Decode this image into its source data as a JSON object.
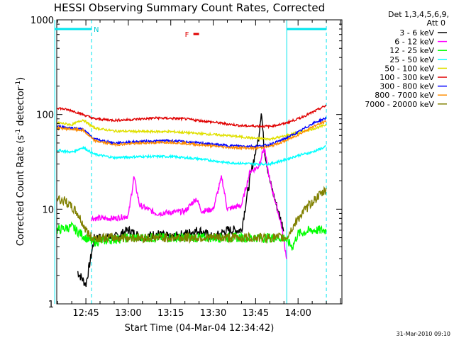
{
  "chart_data": {
    "type": "line",
    "title": "HESSI Observing Summary Count Rates, Corrected",
    "xlabel": "Start Time (04-Mar-04 12:34:42)",
    "ylabel_main": "Corrected Count Rate (s",
    "ylabel_sup1": "-1",
    "ylabel_mid": " detector",
    "ylabel_sup2": "-1",
    "ylabel_end": ")",
    "y_scale": "log",
    "ylim": [
      1,
      1000
    ],
    "y_ticks": [
      "1",
      "10",
      "100",
      "1000"
    ],
    "xlim": [
      "12:34",
      "14:15"
    ],
    "x_ticks": [
      "12:45",
      "13:00",
      "13:15",
      "13:30",
      "13:45",
      "14:00"
    ],
    "legend_header": [
      "Det 1,3,4,5,6,9,",
      "Att 0"
    ],
    "legend_position": "right",
    "annotations": {
      "night_marker": "N",
      "flare_marker": "F"
    },
    "footer": "31-Mar-2010 09:10",
    "series": [
      {
        "name": "3 - 6 keV",
        "color": "#000000",
        "points": [
          [
            "12:42",
            2.2
          ],
          [
            "12:45",
            1.6
          ],
          [
            "12:48",
            5
          ],
          [
            "12:55",
            5
          ],
          [
            "13:00",
            6
          ],
          [
            "13:05",
            5
          ],
          [
            "13:10",
            5.5
          ],
          [
            "13:15",
            5
          ],
          [
            "13:20",
            5.5
          ],
          [
            "13:25",
            6
          ],
          [
            "13:30",
            5
          ],
          [
            "13:35",
            6
          ],
          [
            "13:40",
            6
          ],
          [
            "13:42",
            14
          ],
          [
            "13:44",
            30
          ],
          [
            "13:46",
            55
          ],
          [
            "13:47",
            110
          ],
          [
            "13:48",
            45
          ],
          [
            "13:50",
            20
          ],
          [
            "13:52",
            12
          ],
          [
            "13:55",
            6
          ]
        ]
      },
      {
        "name": "6 - 12 keV",
        "color": "#ff00ff",
        "points": [
          [
            "12:47",
            8
          ],
          [
            "12:55",
            8
          ],
          [
            "13:00",
            8.5
          ],
          [
            "13:02",
            22
          ],
          [
            "13:04",
            11
          ],
          [
            "13:10",
            9
          ],
          [
            "13:20",
            9.5
          ],
          [
            "13:24",
            13
          ],
          [
            "13:26",
            9.5
          ],
          [
            "13:30",
            10
          ],
          [
            "13:33",
            22
          ],
          [
            "13:35",
            10
          ],
          [
            "13:40",
            11
          ],
          [
            "13:43",
            25
          ],
          [
            "13:46",
            28
          ],
          [
            "13:48",
            45
          ],
          [
            "13:50",
            20
          ],
          [
            "13:52",
            12
          ],
          [
            "13:54",
            7
          ],
          [
            "13:56",
            3
          ]
        ]
      },
      {
        "name": "12 - 25 keV",
        "color": "#00ff00",
        "points": [
          [
            "12:34",
            6
          ],
          [
            "12:40",
            6.5
          ],
          [
            "12:45",
            5
          ],
          [
            "12:47",
            4.5
          ],
          [
            "13:00",
            5
          ],
          [
            "13:15",
            5
          ],
          [
            "13:30",
            5
          ],
          [
            "13:45",
            5
          ],
          [
            "13:55",
            5
          ],
          [
            "13:58",
            4
          ],
          [
            "14:00",
            5.5
          ],
          [
            "14:05",
            6
          ],
          [
            "14:10",
            6
          ]
        ]
      },
      {
        "name": "25 - 50 keV",
        "color": "#00ffff",
        "points": [
          [
            "12:34",
            42
          ],
          [
            "12:40",
            40
          ],
          [
            "12:44",
            45
          ],
          [
            "12:48",
            38
          ],
          [
            "12:55",
            35
          ],
          [
            "13:05",
            36
          ],
          [
            "13:15",
            36
          ],
          [
            "13:25",
            34
          ],
          [
            "13:35",
            31
          ],
          [
            "13:45",
            30
          ],
          [
            "13:50",
            30
          ],
          [
            "13:55",
            33
          ],
          [
            "14:00",
            37
          ],
          [
            "14:05",
            40
          ],
          [
            "14:10",
            46
          ]
        ]
      },
      {
        "name": "50 - 100 keV",
        "color": "#e0e000",
        "points": [
          [
            "12:34",
            82
          ],
          [
            "12:40",
            78
          ],
          [
            "12:44",
            88
          ],
          [
            "12:48",
            72
          ],
          [
            "12:55",
            67
          ],
          [
            "13:05",
            66
          ],
          [
            "13:15",
            66
          ],
          [
            "13:25",
            63
          ],
          [
            "13:35",
            60
          ],
          [
            "13:45",
            56
          ],
          [
            "13:50",
            55
          ],
          [
            "13:55",
            59
          ],
          [
            "14:00",
            64
          ],
          [
            "14:05",
            70
          ],
          [
            "14:10",
            78
          ]
        ]
      },
      {
        "name": "100 - 300 keV",
        "color": "#e00000",
        "points": [
          [
            "12:34",
            118
          ],
          [
            "12:40",
            110
          ],
          [
            "12:44",
            100
          ],
          [
            "12:48",
            90
          ],
          [
            "12:55",
            87
          ],
          [
            "13:00",
            88
          ],
          [
            "13:10",
            92
          ],
          [
            "13:20",
            90
          ],
          [
            "13:30",
            83
          ],
          [
            "13:40",
            76
          ],
          [
            "13:50",
            75
          ],
          [
            "13:55",
            80
          ],
          [
            "14:00",
            90
          ],
          [
            "14:05",
            105
          ],
          [
            "14:10",
            125
          ]
        ]
      },
      {
        "name": "300 - 800 keV",
        "color": "#0000ff",
        "points": [
          [
            "12:34",
            75
          ],
          [
            "12:40",
            72
          ],
          [
            "12:44",
            70
          ],
          [
            "12:48",
            55
          ],
          [
            "12:55",
            50
          ],
          [
            "13:05",
            52
          ],
          [
            "13:15",
            53
          ],
          [
            "13:25",
            50
          ],
          [
            "13:35",
            47
          ],
          [
            "13:45",
            46
          ],
          [
            "13:50",
            48
          ],
          [
            "13:55",
            55
          ],
          [
            "14:00",
            65
          ],
          [
            "14:05",
            80
          ],
          [
            "14:10",
            92
          ]
        ]
      },
      {
        "name": "800 - 7000 keV",
        "color": "#ff8c00",
        "points": [
          [
            "12:34",
            72
          ],
          [
            "12:40",
            70
          ],
          [
            "12:44",
            68
          ],
          [
            "12:48",
            53
          ],
          [
            "12:55",
            48
          ],
          [
            "13:05",
            50
          ],
          [
            "13:15",
            51
          ],
          [
            "13:25",
            48
          ],
          [
            "13:35",
            45
          ],
          [
            "13:45",
            44
          ],
          [
            "13:50",
            46
          ],
          [
            "13:55",
            52
          ],
          [
            "14:00",
            61
          ],
          [
            "14:05",
            74
          ],
          [
            "14:10",
            85
          ]
        ]
      },
      {
        "name": "7000 - 20000 keV",
        "color": "#808000",
        "points": [
          [
            "12:34",
            13
          ],
          [
            "12:38",
            12
          ],
          [
            "12:42",
            9
          ],
          [
            "12:45",
            6
          ],
          [
            "12:47",
            5
          ],
          [
            "13:00",
            5
          ],
          [
            "13:10",
            5
          ],
          [
            "13:20",
            5
          ],
          [
            "13:30",
            5
          ],
          [
            "13:40",
            5
          ],
          [
            "13:50",
            5
          ],
          [
            "13:56",
            5
          ],
          [
            "14:00",
            8
          ],
          [
            "14:05",
            12
          ],
          [
            "14:10",
            16
          ]
        ]
      }
    ],
    "cyan_bar_segments": [
      [
        "12:34",
        "12:47"
      ],
      [
        "13:56",
        "14:10"
      ]
    ],
    "night_boundaries": [
      "12:47",
      "14:10"
    ],
    "day_boundaries": [
      "12:34",
      "13:56"
    ],
    "flare_bar": [
      "13:23",
      "13:25"
    ]
  }
}
